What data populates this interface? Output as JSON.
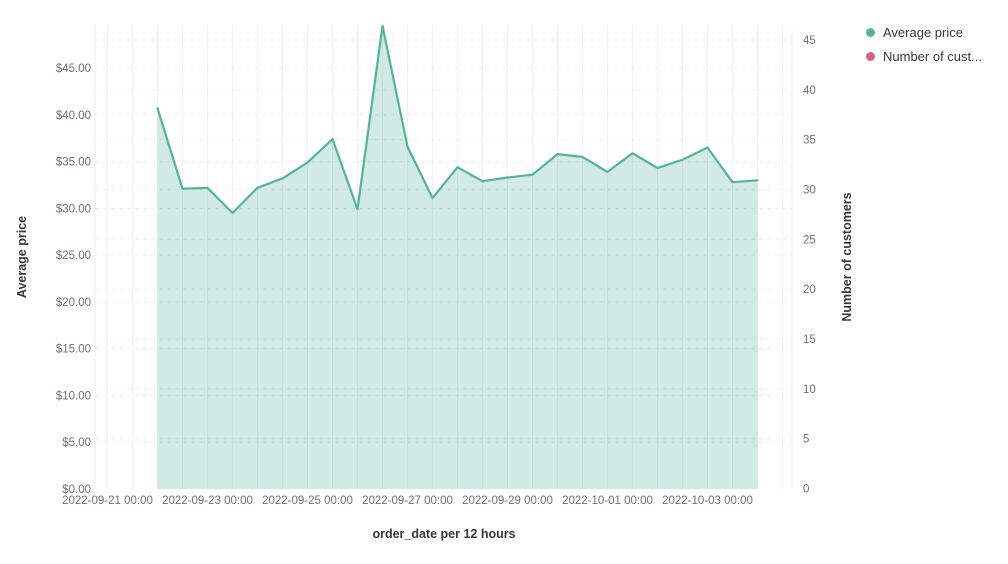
{
  "chart_data": {
    "type": "area",
    "title": "",
    "xlabel": "order_date per 12 hours",
    "ylabel_left": "Average price",
    "ylabel_right": "Number of customers",
    "x_tick_labels": [
      "2022-09-21 00:00",
      "2022-09-23 00:00",
      "2022-09-25 00:00",
      "2022-09-27 00:00",
      "2022-09-29 00:00",
      "2022-10-01 00:00",
      "2022-10-03 00:00"
    ],
    "y_left_tick_labels": [
      "$0.00",
      "$5.00",
      "$10.00",
      "$15.00",
      "$20.00",
      "$25.00",
      "$30.00",
      "$35.00",
      "$40.00",
      "$45.00"
    ],
    "y_left_tick_values": [
      0,
      5,
      10,
      15,
      20,
      25,
      30,
      35,
      40,
      45
    ],
    "y_right_tick_labels": [
      "0",
      "5",
      "10",
      "15",
      "20",
      "25",
      "30",
      "35",
      "40",
      "45"
    ],
    "y_right_tick_values": [
      0,
      5,
      10,
      15,
      20,
      25,
      30,
      35,
      40,
      45
    ],
    "y_left_range": [
      0,
      49.6
    ],
    "y_right_range": [
      0,
      46.5
    ],
    "x_bucket_interval": "12 hours",
    "grid": true,
    "legend_position": "top-right",
    "series": [
      {
        "name": "Average price",
        "legend_label": "Average price",
        "color": "#54b399",
        "fill_opacity": 0.27,
        "axis": "left",
        "x": [
          "2022-09-21 12:00",
          "2022-09-22 00:00",
          "2022-09-22 12:00",
          "2022-09-23 00:00",
          "2022-09-23 12:00",
          "2022-09-24 00:00",
          "2022-09-24 12:00",
          "2022-09-25 00:00",
          "2022-09-25 12:00",
          "2022-09-26 00:00",
          "2022-09-26 12:00",
          "2022-09-27 00:00",
          "2022-09-27 12:00",
          "2022-09-28 00:00",
          "2022-09-28 12:00",
          "2022-09-29 00:00",
          "2022-09-29 12:00",
          "2022-09-30 00:00",
          "2022-09-30 12:00",
          "2022-10-01 00:00",
          "2022-10-01 12:00",
          "2022-10-02 00:00",
          "2022-10-02 12:00",
          "2022-10-03 00:00",
          "2022-10-03 12:00"
        ],
        "values": [
          40.7,
          32.1,
          32.2,
          29.5,
          32.2,
          33.2,
          34.9,
          37.4,
          29.9,
          49.5,
          36.6,
          31.1,
          34.4,
          32.9,
          33.3,
          33.6,
          35.8,
          35.5,
          33.9,
          35.9,
          34.3,
          35.2,
          36.5,
          32.8,
          33.0
        ]
      },
      {
        "name": "Number of customers",
        "legend_label": "Number of cust...",
        "color": "#d36086",
        "axis": "right",
        "x": [],
        "values": []
      }
    ]
  },
  "colors": {
    "series_green": "#54b399",
    "series_pink": "#d36086",
    "grid_vertical": "#f0f1f4",
    "grid_dashed": "#ebedf1",
    "axis_edge": "#e9edf3",
    "tick_label": "#69707d",
    "axis_title": "#343741",
    "background": "#ffffff"
  }
}
